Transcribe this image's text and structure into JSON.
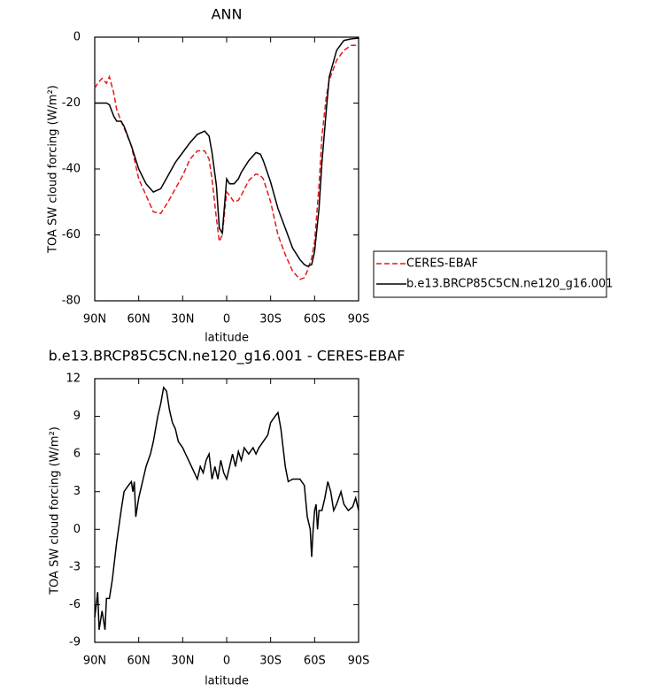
{
  "chart_data": [
    {
      "type": "line",
      "title": "ANN",
      "xlabel": "latitude",
      "ylabel": "TOA SW cloud forcing (W/m²)",
      "x": [
        90,
        88,
        85,
        82,
        80,
        77,
        75,
        72,
        70,
        65,
        60,
        55,
        50,
        45,
        40,
        35,
        30,
        25,
        20,
        15,
        12,
        10,
        7,
        5,
        3,
        0,
        -2,
        -5,
        -8,
        -10,
        -15,
        -20,
        -23,
        -25,
        -30,
        -35,
        -40,
        -45,
        -50,
        -53,
        -55,
        -58,
        -60,
        -63,
        -65,
        -68,
        -70,
        -75,
        -80,
        -85,
        -90
      ],
      "series": [
        {
          "name": "CERES-EBAF",
          "color": "#e41a1c",
          "dashed": true,
          "values": [
            -15.5,
            -14,
            -12.5,
            -14,
            -12,
            -17,
            -22,
            -25.5,
            -27.5,
            -33,
            -43,
            -48,
            -53,
            -53.5,
            -50,
            -46,
            -42,
            -37,
            -34.5,
            -34.5,
            -37,
            -43,
            -55,
            -62,
            -60,
            -47,
            -48,
            -50,
            -49.5,
            -48,
            -43.5,
            -41.5,
            -42,
            -43,
            -50,
            -60,
            -66,
            -71,
            -73.5,
            -73,
            -71,
            -67,
            -62,
            -45,
            -30,
            -18,
            -13,
            -7,
            -4,
            -2.5,
            -2.5
          ]
        },
        {
          "name": "b.e13.BRCP85C5CN.ne120_g16.001",
          "color": "#000000",
          "dashed": false,
          "values": [
            -20,
            -20,
            -20,
            -20,
            -20.5,
            -24,
            -25.5,
            -25.5,
            -27,
            -33,
            -40,
            -44.5,
            -47,
            -46,
            -42,
            -38,
            -35,
            -32,
            -29.5,
            -28.5,
            -30,
            -35,
            -45,
            -58,
            -59.5,
            -43,
            -44.5,
            -44.5,
            -43,
            -41,
            -37.5,
            -35,
            -35.5,
            -37.5,
            -44,
            -52,
            -58,
            -64,
            -67.5,
            -69,
            -69.5,
            -69,
            -65,
            -52,
            -38,
            -22,
            -12,
            -4,
            -1,
            -0.5,
            -0.3
          ]
        }
      ],
      "xlim": [
        90,
        -90
      ],
      "xticks": [
        {
          "value": 90,
          "label": "90N"
        },
        {
          "value": 60,
          "label": "60N"
        },
        {
          "value": 30,
          "label": "30N"
        },
        0,
        {
          "value": -30,
          "label": "30S"
        },
        {
          "value": -60,
          "label": "60S"
        },
        {
          "value": -90,
          "label": "90S"
        }
      ],
      "ylim": [
        -80,
        0
      ],
      "yticks": [
        -80,
        -60,
        -40,
        -20,
        0
      ],
      "legend": true
    },
    {
      "type": "line",
      "title": "b.e13.BRCP85C5CN.ne120_g16.001 - CERES-EBAF",
      "xlabel": "latitude",
      "ylabel": "TOA SW cloud forcing (W/m²)",
      "x": [
        90,
        88,
        87,
        85,
        83,
        82,
        80,
        78,
        75,
        72,
        70,
        67,
        65,
        64,
        63,
        62,
        60,
        57,
        55,
        52,
        50,
        47,
        45,
        43,
        41,
        39,
        37,
        35,
        33,
        30,
        28,
        26,
        24,
        22,
        20,
        18,
        16,
        14,
        12,
        10,
        8,
        6,
        4,
        2,
        0,
        -2,
        -4,
        -6,
        -8,
        -10,
        -12,
        -15,
        -18,
        -20,
        -22,
        -25,
        -28,
        -30,
        -33,
        -35,
        -37,
        -40,
        -42,
        -45,
        -50,
        -53,
        -55,
        -57,
        -58,
        -59,
        -60,
        -61,
        -62,
        -63,
        -65,
        -67,
        -69,
        -71,
        -73,
        -75,
        -78,
        -80,
        -83,
        -86,
        -88,
        -90
      ],
      "values": [
        -7,
        -5,
        -8,
        -6.5,
        -8,
        -5.5,
        -5.5,
        -4,
        -1,
        1.5,
        3,
        3.5,
        3.8,
        3,
        3.8,
        1,
        2.5,
        4,
        5,
        6,
        7,
        9,
        10,
        11.3,
        11,
        9.5,
        8.5,
        8,
        7,
        6.5,
        6,
        5.5,
        5,
        4.5,
        4,
        5,
        4.5,
        5.5,
        6,
        4,
        5,
        4,
        5.5,
        4.5,
        4,
        5,
        6,
        5,
        6.2,
        5.5,
        6.5,
        6,
        6.5,
        6,
        6.5,
        7,
        7.5,
        8.5,
        9,
        9.3,
        8,
        5,
        3.8,
        4,
        4,
        3.5,
        1,
        0,
        -2.2,
        0,
        1.5,
        2,
        0,
        1.5,
        1.5,
        2.5,
        3.8,
        3,
        1.5,
        2,
        3,
        2,
        1.5,
        1.8,
        2.5,
        1.5
      ],
      "color": "#000000",
      "xlim": [
        90,
        -90
      ],
      "xticks": [
        {
          "value": 90,
          "label": "90N"
        },
        {
          "value": 60,
          "label": "60N"
        },
        {
          "value": 30,
          "label": "30N"
        },
        0,
        {
          "value": -30,
          "label": "30S"
        },
        {
          "value": -60,
          "label": "60S"
        },
        {
          "value": -90,
          "label": "90S"
        }
      ],
      "ylim": [
        -9,
        12
      ],
      "yticks": [
        -9,
        -6,
        -3,
        0,
        3,
        6,
        9,
        12
      ]
    }
  ]
}
